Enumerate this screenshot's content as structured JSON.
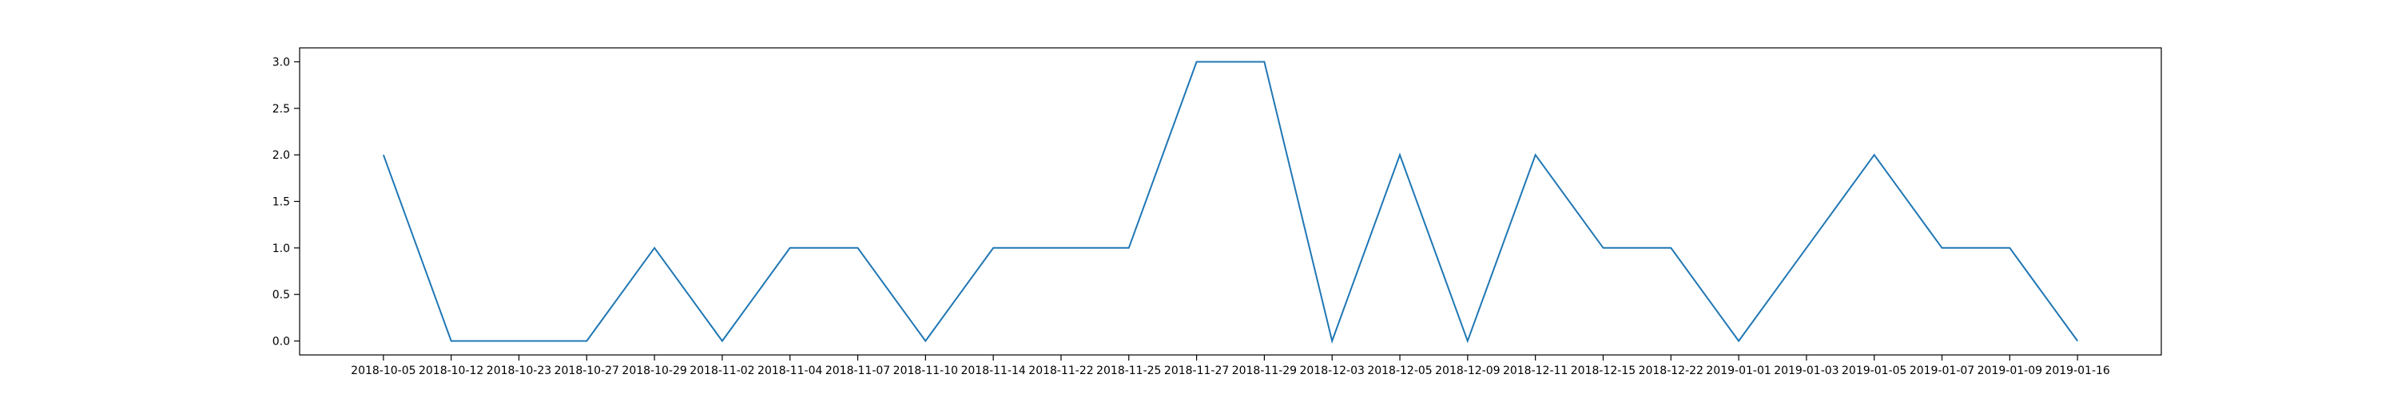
{
  "chart_data": {
    "type": "line",
    "title": "",
    "xlabel": "",
    "ylabel": "",
    "categories": [
      "2018-10-05",
      "2018-10-12",
      "2018-10-23",
      "2018-10-27",
      "2018-10-29",
      "2018-11-02",
      "2018-11-04",
      "2018-11-07",
      "2018-11-10",
      "2018-11-14",
      "2018-11-22",
      "2018-11-25",
      "2018-11-27",
      "2018-11-29",
      "2018-12-03",
      "2018-12-05",
      "2018-12-09",
      "2018-12-11",
      "2018-12-15",
      "2018-12-22",
      "2019-01-01",
      "2019-01-03",
      "2019-01-05",
      "2019-01-07",
      "2019-01-09",
      "2019-01-16"
    ],
    "series": [
      {
        "values": [
          2,
          0,
          0,
          0,
          1,
          0,
          1,
          1,
          0,
          1,
          1,
          1,
          3,
          3,
          0,
          2,
          0,
          2,
          1,
          1,
          0,
          1,
          2,
          1,
          1,
          0
        ],
        "color": "#1f77b4"
      }
    ],
    "ylim": [
      -0.15,
      3.15
    ],
    "yticks": [
      0.0,
      0.5,
      1.0,
      1.5,
      2.0,
      2.5,
      3.0
    ],
    "ytick_labels": [
      "0.0",
      "0.5",
      "1.0",
      "1.5",
      "2.0",
      "2.5",
      "3.0"
    ],
    "grid": false,
    "legend": "none"
  }
}
